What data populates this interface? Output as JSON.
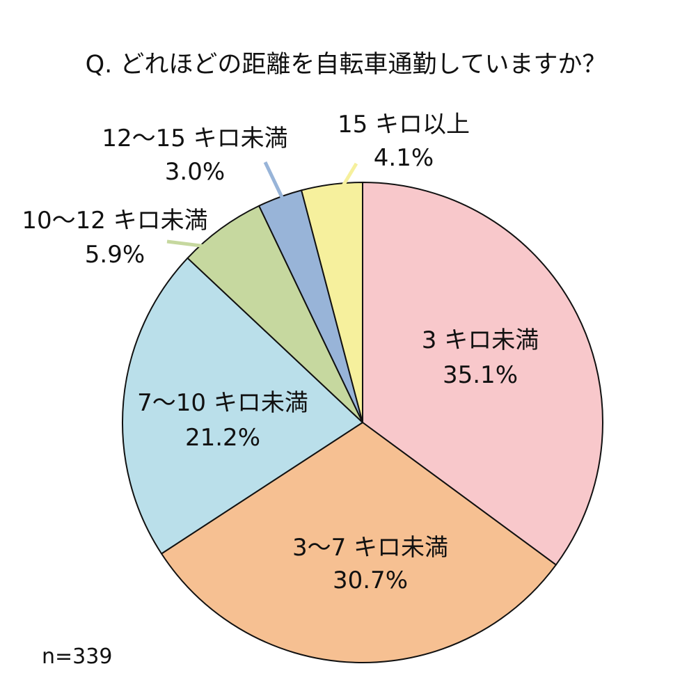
{
  "chart_data": {
    "type": "pie",
    "title": "Q. どれほどの距離を自転車通勤していますか？",
    "note": "n=339",
    "slices": [
      {
        "label": "3 キロ未満",
        "value": 35.1,
        "value_label": "35.1%",
        "color": "#f8c8cb"
      },
      {
        "label": "3〜7 キロ未満",
        "value": 30.7,
        "value_label": "30.7%",
        "color": "#f6c092"
      },
      {
        "label": "7〜10 キロ未満",
        "value": 21.2,
        "value_label": "21.2%",
        "color": "#badfea"
      },
      {
        "label": "10〜12 キロ未満",
        "value": 5.9,
        "value_label": "5.9%",
        "color": "#c6d89f"
      },
      {
        "label": "12〜15 キロ未満",
        "value": 3.0,
        "value_label": "3.0%",
        "color": "#98b4d8"
      },
      {
        "label": "15 キロ以上",
        "value": 4.1,
        "value_label": "4.1%",
        "color": "#f6f09d"
      }
    ]
  }
}
